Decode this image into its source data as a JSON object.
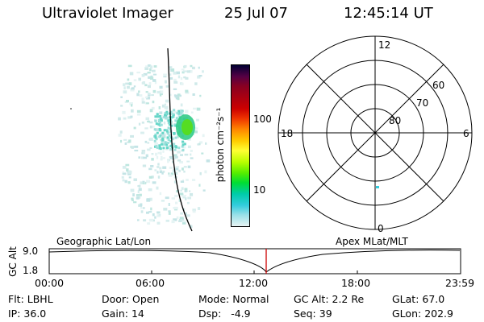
{
  "header": {
    "title": "Ultraviolet Imager",
    "date": "25 Jul 07",
    "time": "12:45:14 UT"
  },
  "colorbar": {
    "unit_label": "photon cm⁻²s⁻¹",
    "ticks": [
      "100",
      "10"
    ],
    "colors": [
      "#000033",
      "#550044",
      "#880022",
      "#aa0011",
      "#cc0000",
      "#ee3300",
      "#ff8800",
      "#ffcc00",
      "#ffff33",
      "#bbff00",
      "#55ee00",
      "#00dd33",
      "#00ccaa",
      "#33ccdd",
      "#99e0e8",
      "#e8f4f4"
    ]
  },
  "polar": {
    "mlt_labels": [
      "12",
      "18",
      "6",
      "0"
    ],
    "lat_labels": [
      "60",
      "70",
      "80"
    ]
  },
  "plot": {
    "left_title": "Geographic Lat/Lon",
    "right_title": "Apex MLat/MLT",
    "y_label": "GC Alt",
    "y_ticks": [
      "9.0",
      "1.8"
    ],
    "x_ticks": [
      "00:00",
      "06:00",
      "12:00",
      "18:00",
      "23:59"
    ]
  },
  "info": {
    "row1": [
      {
        "label": "Flt: ",
        "value": "LBHL"
      },
      {
        "label": "Door: ",
        "value": "Open"
      },
      {
        "label": "Mode: ",
        "value": "Normal"
      },
      {
        "label": "GC Alt: ",
        "value": "2.2 Re"
      },
      {
        "label": "GLat: ",
        "value": "67.0"
      }
    ],
    "row2": [
      {
        "label": "IP: ",
        "value": "36.0"
      },
      {
        "label": "Gain: ",
        "value": "14"
      },
      {
        "label": "Dsp: ",
        "value": "  -4.9"
      },
      {
        "label": "Seq: ",
        "value": "39"
      },
      {
        "label": "GLon: ",
        "value": "202.9"
      }
    ]
  }
}
